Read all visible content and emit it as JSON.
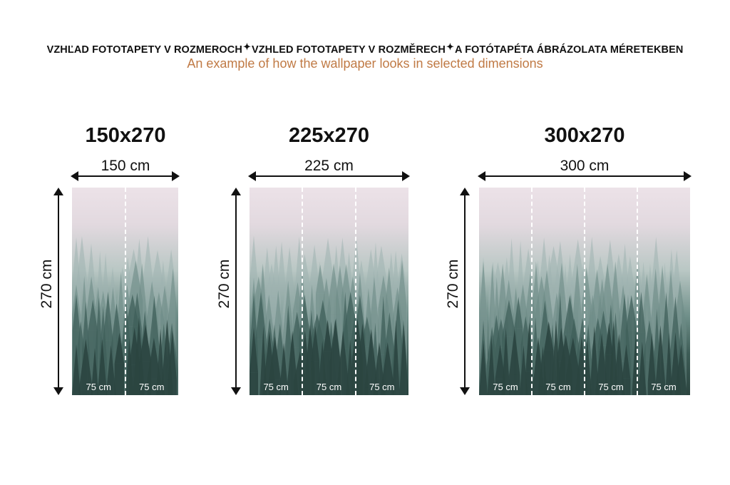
{
  "header": {
    "titles": [
      "VZHĽAD FOTOTAPETY V ROZMEROCH",
      "VZHLED FOTOTAPETY V ROZMĚRECH",
      "A FOTÓTAPÉTA ÁBRÁZOLATA MÉRETEKBEN"
    ],
    "separator_icon": "sparkle-icon",
    "subtitle": "An example of how the wallpaper looks in selected dimensions",
    "subtitle_color": "#c07a45"
  },
  "variants": [
    {
      "title": "150x270",
      "width_label": "150 cm",
      "height_label": "270 cm",
      "segments": [
        "75 cm",
        "75 cm"
      ]
    },
    {
      "title": "225x270",
      "width_label": "225 cm",
      "height_label": "270 cm",
      "segments": [
        "75 cm",
        "75 cm",
        "75 cm"
      ]
    },
    {
      "title": "300x270",
      "width_label": "300 cm",
      "height_label": "270 cm",
      "segments": [
        "75 cm",
        "75 cm",
        "75 cm",
        "75 cm"
      ]
    }
  ]
}
